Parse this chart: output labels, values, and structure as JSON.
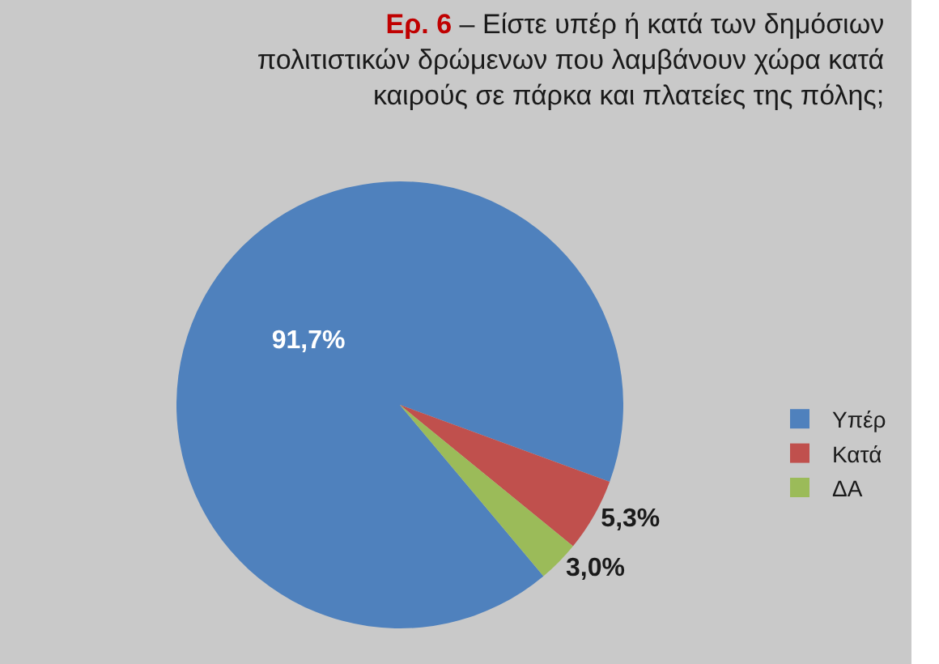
{
  "chart_data": {
    "type": "pie",
    "title": "Ερ. 6 – Είστε υπέρ ή κατά των δημόσιων πολιτιστικών δρώμενων που λαμβάνουν χώρα κατά καιρούς σε πάρκα και πλατείες της πόλης;",
    "categories": [
      "Υπέρ",
      "Κατά",
      "ΔΑ"
    ],
    "values": [
      91.7,
      5.3,
      3.0
    ],
    "colors": [
      "#4f81bd",
      "#c0504d",
      "#9bbb59"
    ],
    "value_labels": [
      "91,7%",
      "5,3%",
      "3,0%"
    ],
    "legend": "right"
  }
}
